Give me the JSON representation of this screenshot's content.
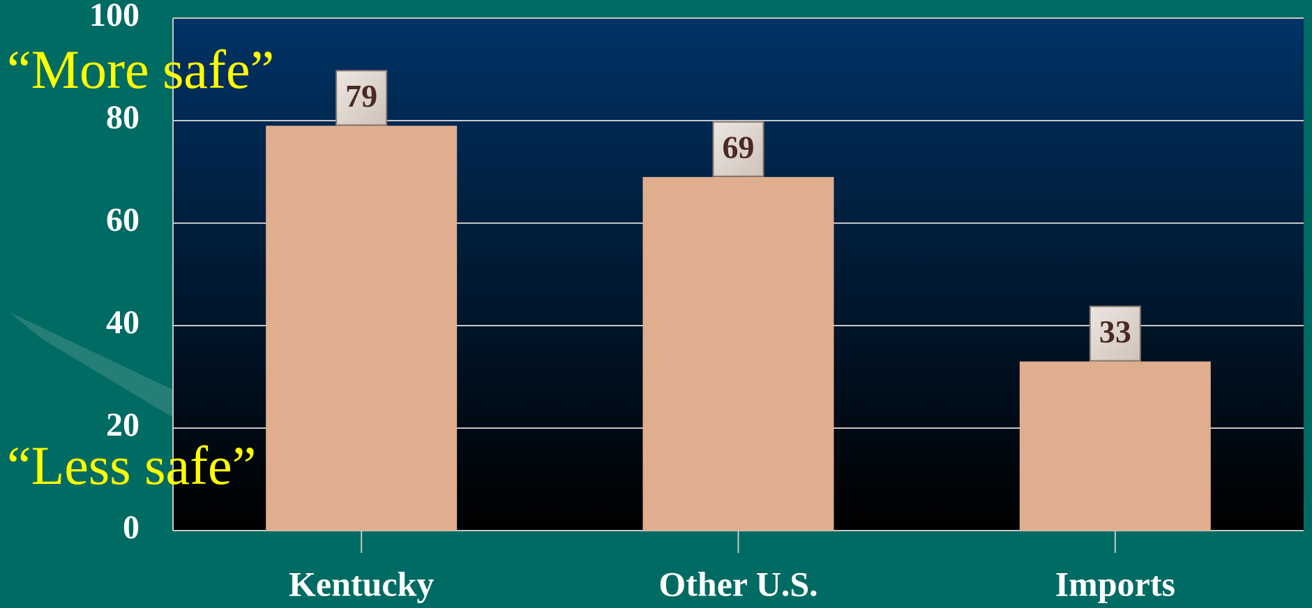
{
  "chart_data": {
    "type": "bar",
    "categories": [
      "Kentucky",
      "Other U.S.",
      "Imports"
    ],
    "values": [
      79,
      69,
      33
    ],
    "color": "#e0ae8e",
    "ylim": [
      0,
      100
    ],
    "yticks": [
      0,
      20,
      40,
      60,
      80,
      100
    ],
    "grid": true,
    "annotations": [
      "“More safe”",
      "“Less safe”"
    ]
  }
}
